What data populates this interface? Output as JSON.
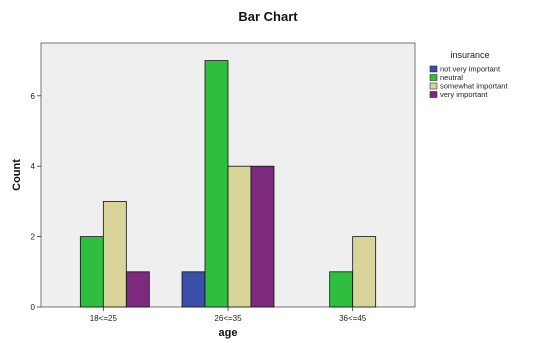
{
  "chart_data": {
    "type": "bar",
    "title": "Bar Chart",
    "xlabel": "age",
    "ylabel": "Count",
    "categories": [
      "18<=25",
      "26<=35",
      "36<=45"
    ],
    "ylim": [
      0,
      7.5
    ],
    "yticks": [
      0,
      2,
      4,
      6
    ],
    "grid": false,
    "legend": {
      "title": "insurance",
      "placement": "right"
    },
    "series": [
      {
        "name": "not very important",
        "color": "#3b4fa8",
        "values": [
          null,
          1,
          null
        ]
      },
      {
        "name": "neutral",
        "color": "#2fbf3f",
        "values": [
          2,
          7,
          1
        ]
      },
      {
        "name": "somewhat important",
        "color": "#d8d49a",
        "values": [
          3,
          4,
          2
        ]
      },
      {
        "name": "very important",
        "color": "#7b2a7e",
        "values": [
          1,
          4,
          null
        ]
      }
    ],
    "colors": {
      "plot_background": "#efefef",
      "bar_stroke": "#111111"
    }
  }
}
